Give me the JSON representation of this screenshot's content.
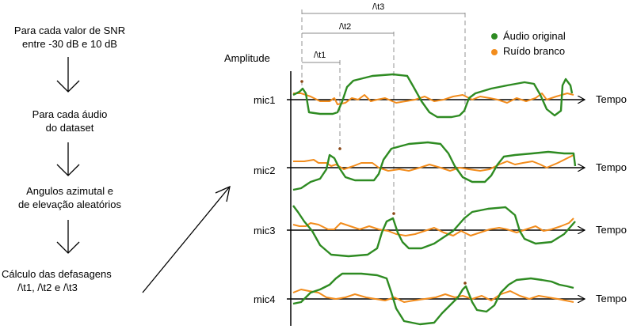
{
  "flow": {
    "steps": [
      {
        "line1": "Para cada valor de SNR",
        "line2": "entre -30 dB e 10 dB"
      },
      {
        "line1": "Para cada áudio",
        "line2": "do dataset"
      },
      {
        "line1": "Angulos azimutal e",
        "line2": "de elevação aleatórios"
      },
      {
        "line1": "Cálculo das defasagens",
        "line2": "/\\t1, /\\t2 e /\\t3"
      }
    ]
  },
  "plot": {
    "ylabel": "Amplitude",
    "time_label": "Tempo",
    "mics": [
      "mic1",
      "mic2",
      "mic3",
      "mic4"
    ],
    "delays": [
      "/\\t1",
      "/\\t2",
      "/\\t3"
    ],
    "legend": [
      {
        "label": "Áudio original",
        "color": "#2e8b22"
      },
      {
        "label": "Ruído branco",
        "color": "#f28c1c"
      }
    ]
  }
}
